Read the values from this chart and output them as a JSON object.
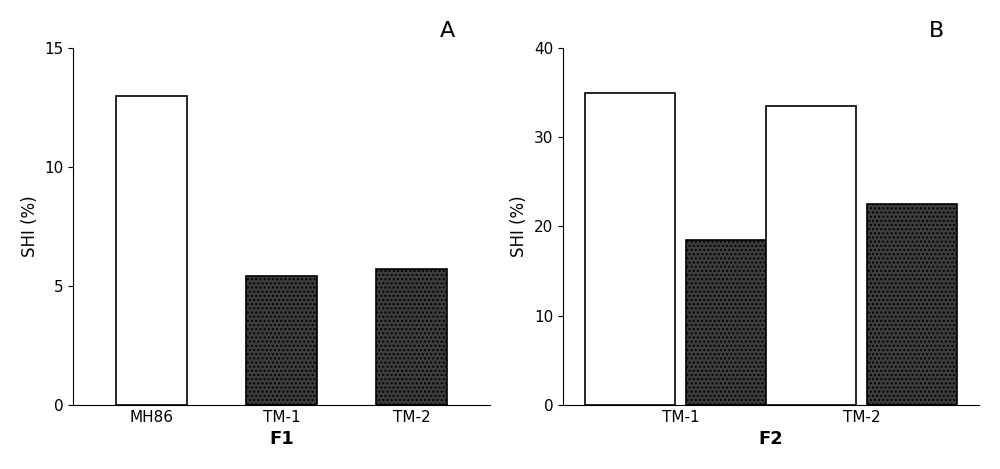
{
  "panel_A": {
    "categories": [
      "MH86",
      "TM-1",
      "TM-2"
    ],
    "values": [
      13.0,
      5.4,
      5.7
    ],
    "colors": [
      "#ffffff",
      "#3d3d3d",
      "#3d3d3d"
    ],
    "ylim": [
      0,
      15
    ],
    "yticks": [
      0,
      5,
      10,
      15
    ],
    "ylabel": "SHI (%)",
    "xlabel": "F1",
    "panel_label": "A"
  },
  "panel_B": {
    "categories": [
      "TM-1",
      "TM-2"
    ],
    "values_white": [
      35.0,
      33.5
    ],
    "values_dark": [
      18.5,
      22.5
    ],
    "colors_white": [
      "#ffffff",
      "#ffffff"
    ],
    "colors_dark": [
      "#3d3d3d",
      "#3d3d3d"
    ],
    "ylim": [
      0,
      40
    ],
    "yticks": [
      0,
      10,
      20,
      30,
      40
    ],
    "ylabel": "SHI (%)",
    "xlabel": "F2",
    "panel_label": "B"
  },
  "bar_width": 0.55,
  "edge_color": "#000000",
  "bg_color": "#ffffff",
  "font_size_ticks": 11,
  "font_size_labels": 12,
  "font_size_panel": 14
}
